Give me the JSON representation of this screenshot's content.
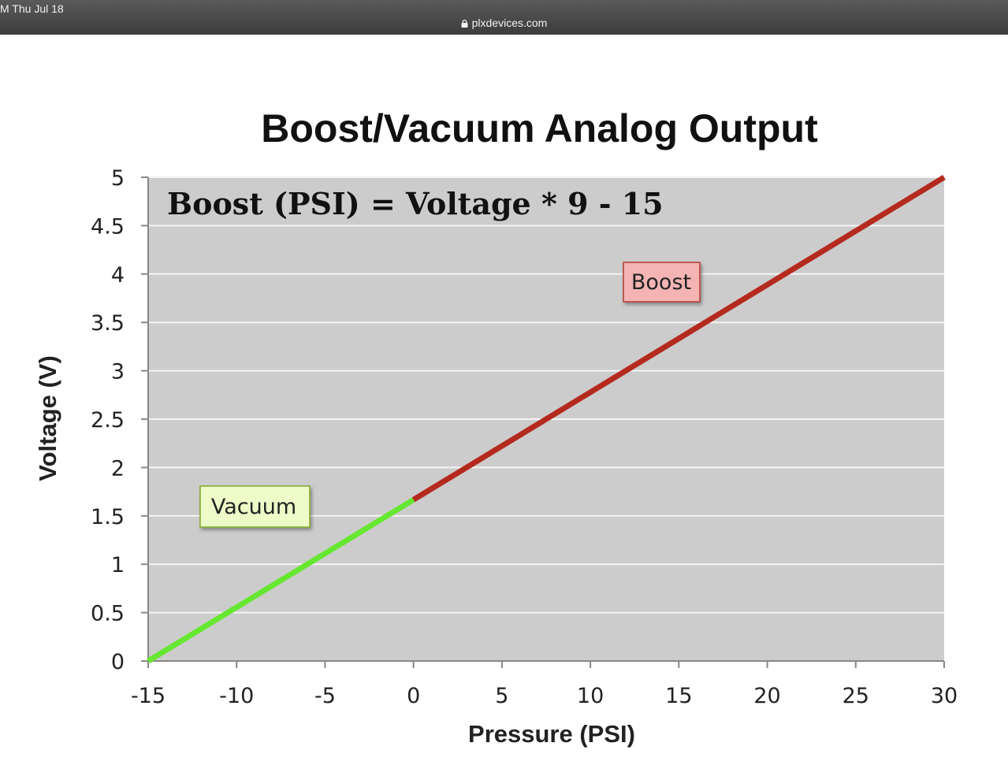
{
  "status": {
    "time": "M  Thu Jul 18"
  },
  "browser": {
    "url": "plxdevices.com"
  },
  "chart_data": {
    "type": "line",
    "title": "Boost/Vacuum Analog Output",
    "xlabel": "Pressure (PSI)",
    "ylabel": "Voltage (V)",
    "xlim": [
      -15,
      30
    ],
    "ylim": [
      0,
      5
    ],
    "x_ticks": [
      "-15",
      "-10",
      "-5",
      "0",
      "5",
      "10",
      "15",
      "20",
      "25",
      "30"
    ],
    "y_ticks": [
      "0",
      "0.5",
      "1",
      "1.5",
      "2",
      "2.5",
      "3",
      "3.5",
      "4",
      "4.5",
      "5"
    ],
    "grid": true,
    "annotation": "Boost (PSI) = Voltage * 9 - 15",
    "series": [
      {
        "name": "Vacuum",
        "color": "#66e830",
        "x": [
          -15,
          0
        ],
        "y": [
          0,
          1.667
        ]
      },
      {
        "name": "Boost",
        "color": "#b52a1e",
        "x": [
          0,
          30
        ],
        "y": [
          1.667,
          5
        ]
      }
    ]
  }
}
